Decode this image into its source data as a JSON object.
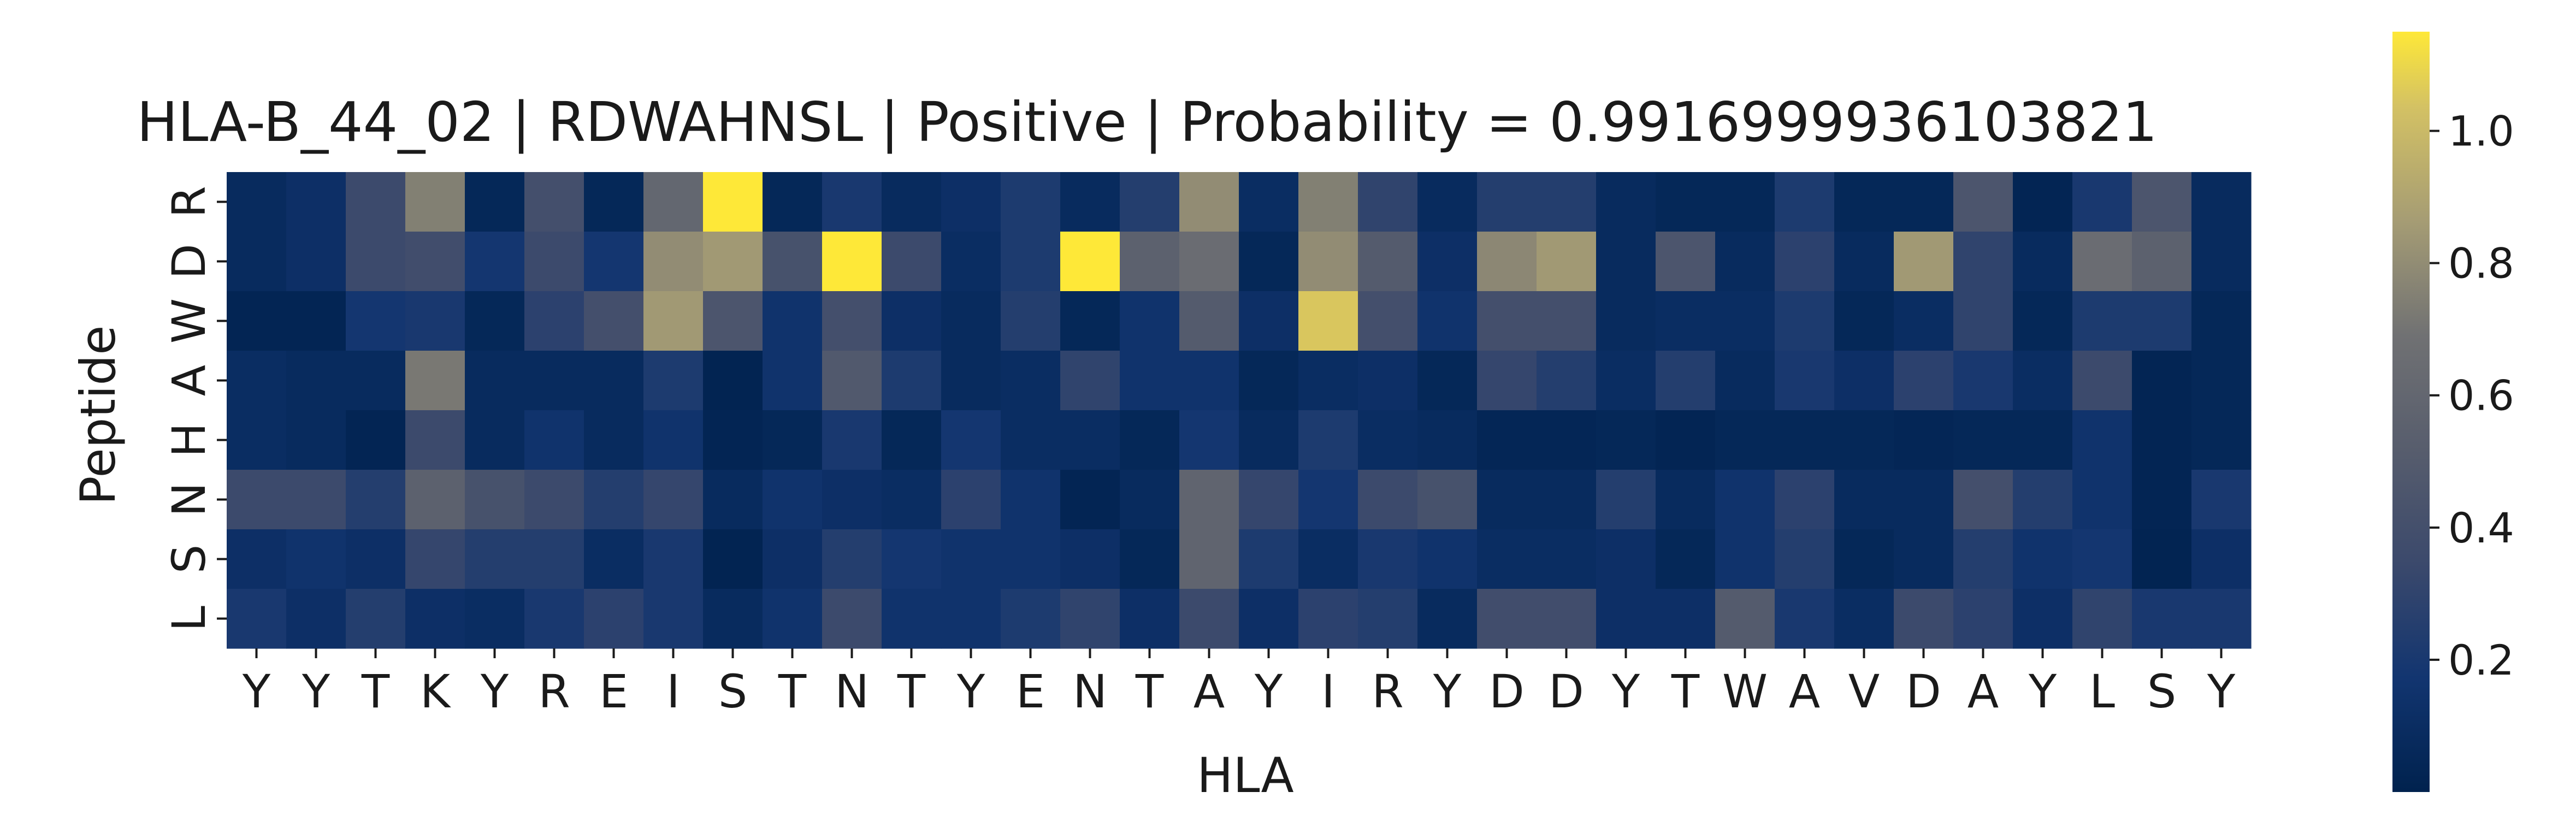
{
  "chart_data": {
    "type": "heatmap",
    "title": "HLA-B_44_02 | RDWAHNSL | Positive | Probability = 0.9916999936103821",
    "xlabel": "HLA",
    "ylabel": "Peptide",
    "x_labels": [
      "Y",
      "Y",
      "T",
      "K",
      "Y",
      "R",
      "E",
      "I",
      "S",
      "T",
      "N",
      "T",
      "Y",
      "E",
      "N",
      "T",
      "A",
      "Y",
      "I",
      "R",
      "Y",
      "D",
      "D",
      "Y",
      "T",
      "W",
      "A",
      "V",
      "D",
      "A",
      "Y",
      "L",
      "S",
      "Y"
    ],
    "y_labels": [
      "R",
      "D",
      "W",
      "A",
      "H",
      "N",
      "S",
      "L"
    ],
    "colormap": "cividis",
    "vmin": 0.0,
    "vmax": 1.15,
    "colorbar_ticks": [
      "0.2",
      "0.4",
      "0.6",
      "0.8",
      "1.0"
    ],
    "values": [
      [
        0.08,
        0.12,
        0.35,
        0.75,
        0.05,
        0.4,
        0.05,
        0.6,
        1.15,
        0.05,
        0.2,
        0.08,
        0.12,
        0.22,
        0.08,
        0.25,
        0.8,
        0.1,
        0.75,
        0.3,
        0.08,
        0.25,
        0.25,
        0.08,
        0.05,
        0.05,
        0.22,
        0.05,
        0.05,
        0.45,
        0.03,
        0.2,
        0.45,
        0.08
      ],
      [
        0.08,
        0.12,
        0.35,
        0.38,
        0.18,
        0.35,
        0.18,
        0.8,
        0.85,
        0.42,
        1.15,
        0.35,
        0.1,
        0.22,
        1.15,
        0.55,
        0.65,
        0.05,
        0.8,
        0.5,
        0.12,
        0.78,
        0.85,
        0.08,
        0.45,
        0.08,
        0.28,
        0.08,
        0.85,
        0.3,
        0.08,
        0.65,
        0.55,
        0.08
      ],
      [
        0.03,
        0.03,
        0.18,
        0.2,
        0.05,
        0.28,
        0.4,
        0.85,
        0.45,
        0.15,
        0.4,
        0.12,
        0.08,
        0.25,
        0.05,
        0.15,
        0.5,
        0.12,
        1.05,
        0.4,
        0.15,
        0.4,
        0.4,
        0.08,
        0.1,
        0.1,
        0.22,
        0.05,
        0.1,
        0.3,
        0.05,
        0.22,
        0.22,
        0.05
      ],
      [
        0.1,
        0.08,
        0.08,
        0.72,
        0.08,
        0.08,
        0.08,
        0.22,
        0.02,
        0.15,
        0.48,
        0.22,
        0.08,
        0.1,
        0.3,
        0.15,
        0.15,
        0.05,
        0.1,
        0.12,
        0.05,
        0.32,
        0.25,
        0.1,
        0.25,
        0.08,
        0.2,
        0.12,
        0.28,
        0.2,
        0.1,
        0.35,
        0.03,
        0.05
      ],
      [
        0.1,
        0.08,
        0.03,
        0.35,
        0.08,
        0.15,
        0.08,
        0.15,
        0.03,
        0.05,
        0.2,
        0.05,
        0.18,
        0.1,
        0.1,
        0.05,
        0.18,
        0.08,
        0.22,
        0.1,
        0.08,
        0.04,
        0.04,
        0.05,
        0.03,
        0.05,
        0.05,
        0.05,
        0.04,
        0.05,
        0.05,
        0.15,
        0.03,
        0.05
      ],
      [
        0.35,
        0.35,
        0.25,
        0.55,
        0.42,
        0.35,
        0.25,
        0.32,
        0.08,
        0.15,
        0.12,
        0.1,
        0.28,
        0.15,
        0.03,
        0.08,
        0.58,
        0.32,
        0.18,
        0.35,
        0.42,
        0.08,
        0.08,
        0.25,
        0.08,
        0.15,
        0.28,
        0.08,
        0.08,
        0.4,
        0.25,
        0.15,
        0.03,
        0.2
      ],
      [
        0.12,
        0.15,
        0.12,
        0.32,
        0.25,
        0.25,
        0.1,
        0.2,
        0.02,
        0.12,
        0.25,
        0.18,
        0.15,
        0.15,
        0.12,
        0.05,
        0.58,
        0.22,
        0.1,
        0.2,
        0.15,
        0.1,
        0.1,
        0.12,
        0.05,
        0.15,
        0.25,
        0.05,
        0.08,
        0.25,
        0.15,
        0.18,
        0.02,
        0.12
      ],
      [
        0.2,
        0.12,
        0.25,
        0.12,
        0.1,
        0.2,
        0.28,
        0.2,
        0.08,
        0.15,
        0.35,
        0.15,
        0.15,
        0.22,
        0.3,
        0.12,
        0.35,
        0.12,
        0.28,
        0.25,
        0.08,
        0.38,
        0.38,
        0.12,
        0.12,
        0.5,
        0.2,
        0.1,
        0.35,
        0.28,
        0.12,
        0.3,
        0.2,
        0.2
      ]
    ]
  }
}
